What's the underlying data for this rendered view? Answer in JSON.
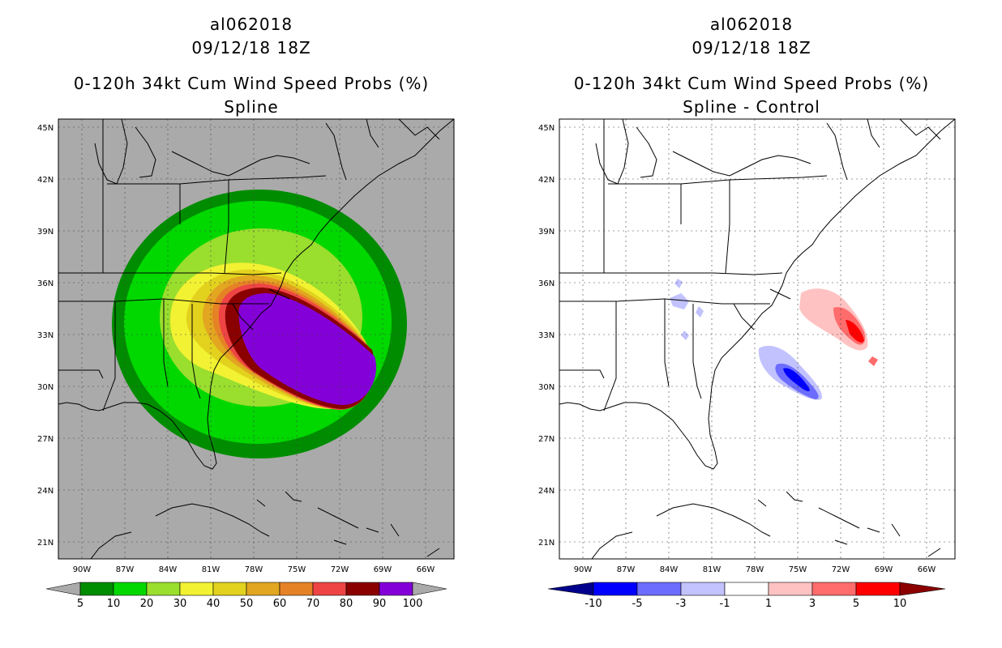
{
  "left": {
    "storm_id": "al062018",
    "datetime": "09/12/18 18Z",
    "product": "0-120h 34kt Cum Wind Speed Probs (%)",
    "subtitle": "Spline",
    "colorbar": {
      "labels": [
        "5",
        "10",
        "20",
        "30",
        "40",
        "50",
        "60",
        "70",
        "80",
        "90",
        "100"
      ],
      "colors": [
        "#008c00",
        "#00d800",
        "#9ade2e",
        "#f2f232",
        "#e2d21e",
        "#e2a620",
        "#e68226",
        "#ee4444",
        "#8a0000",
        "#8400d8"
      ],
      "extend_color": "#aaaaaa"
    }
  },
  "right": {
    "storm_id": "al062018",
    "datetime": "09/12/18 18Z",
    "product": "0-120h 34kt Cum Wind Speed Probs (%)",
    "subtitle": "Spline - Control",
    "colorbar": {
      "labels": [
        "-10",
        "-5",
        "-3",
        "-1",
        "1",
        "3",
        "5",
        "10"
      ],
      "colors": [
        "#0000ff",
        "#6c6cff",
        "#c2c2ff",
        "#ffffff",
        "#ffc2c2",
        "#ff6c6c",
        "#ff0000"
      ],
      "low_color": "#00008c",
      "high_color": "#8c0000"
    }
  },
  "axes": {
    "lat_labels": [
      "45N",
      "42N",
      "39N",
      "36N",
      "33N",
      "30N",
      "27N",
      "24N",
      "21N"
    ],
    "lon_labels": [
      "90W",
      "87W",
      "84W",
      "81W",
      "78W",
      "75W",
      "72W",
      "69W",
      "66W"
    ]
  }
}
